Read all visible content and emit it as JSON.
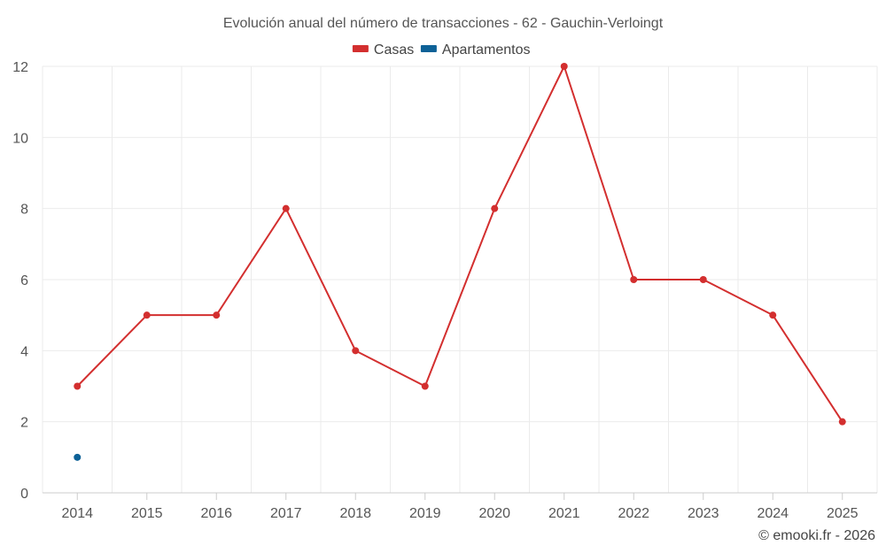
{
  "chart_data": {
    "type": "line",
    "title": "Evolución anual del número de transacciones - 62 - Gauchin-Verloingt",
    "categories": [
      "2014",
      "2015",
      "2016",
      "2017",
      "2018",
      "2019",
      "2020",
      "2021",
      "2022",
      "2023",
      "2024",
      "2025"
    ],
    "series": [
      {
        "name": "Casas",
        "color": "#d32f2f",
        "values": [
          3,
          5,
          5,
          8,
          4,
          3,
          8,
          12,
          6,
          6,
          5,
          2
        ]
      },
      {
        "name": "Apartamentos",
        "color": "#0d6197",
        "values": [
          1,
          null,
          null,
          null,
          null,
          null,
          null,
          null,
          null,
          null,
          null,
          null
        ]
      }
    ],
    "ylim": [
      0,
      12
    ],
    "yticks": [
      0,
      2,
      4,
      6,
      8,
      10,
      12
    ],
    "grid": true,
    "legend_position": "top-center",
    "xlabel": "",
    "ylabel": ""
  },
  "credit": "© emooki.fr - 2026"
}
